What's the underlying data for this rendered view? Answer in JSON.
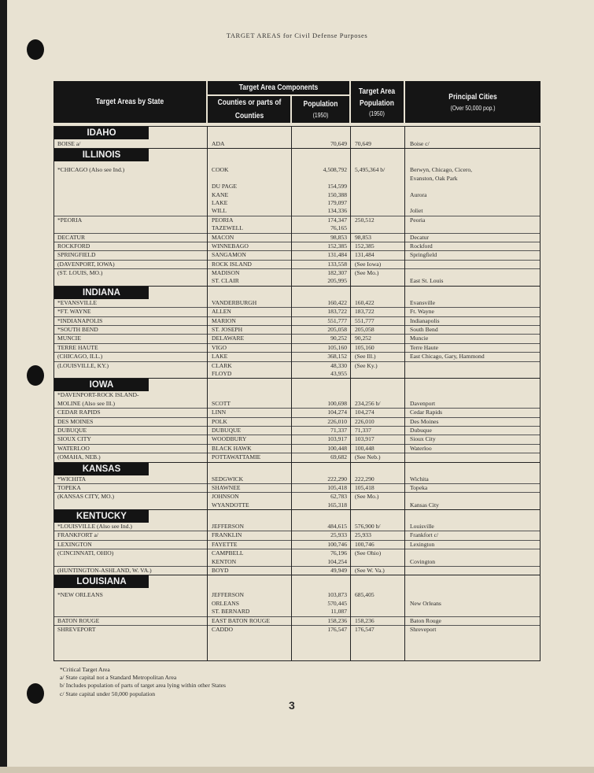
{
  "page_title": "TARGET AREAS for Civil Defense Purposes",
  "header": {
    "col_state": "Target Areas by State",
    "group": "Target Area Components",
    "col_counties": "Counties or parts of Counties",
    "col_population": "Population",
    "col_population_year": "(1950)",
    "col_ta_population": "Target Area Population",
    "col_ta_population_year": "(1950)",
    "col_cities": "Principal Cities",
    "col_cities_note": "(Over 50,000 pop.)"
  },
  "states": [
    {
      "name": "IDAHO",
      "entries": [
        {
          "lines": [
            [
              "BOISE a/",
              "ADA",
              "70,649",
              "70,649",
              "Boise c/"
            ]
          ]
        }
      ]
    },
    {
      "name": "ILLINOIS",
      "entries": [
        {
          "lines": [
            [
              "*CHICAGO (Also see Ind.)",
              "COOK",
              "4,508,792",
              "5,495,364 b/",
              "Berwyn, Chicago, Cicero,"
            ],
            [
              "",
              "",
              "",
              "",
              "Evanston, Oak Park"
            ],
            [
              "",
              "DU PAGE",
              "154,599",
              "",
              ""
            ],
            [
              "",
              "KANE",
              "150,388",
              "",
              "Aurora"
            ],
            [
              "",
              "LAKE",
              "179,097",
              "",
              ""
            ],
            [
              "",
              "WILL",
              "134,336",
              "",
              "Joliet"
            ]
          ]
        },
        {
          "lines": [
            [
              "*PEORIA",
              "PEORIA",
              "174,347",
              "250,512",
              "Peoria"
            ],
            [
              "",
              "TAZEWELL",
              "76,165",
              "",
              ""
            ]
          ]
        },
        {
          "lines": [
            [
              "DECATUR",
              "MACON",
              "98,853",
              "98,853",
              "Decatur"
            ]
          ]
        },
        {
          "lines": [
            [
              "ROCKFORD",
              "WINNEBAGO",
              "152,385",
              "152,385",
              "Rockford"
            ]
          ]
        },
        {
          "lines": [
            [
              "SPRINGFIELD",
              "SANGAMON",
              "131,484",
              "131,484",
              "Springfield"
            ]
          ]
        },
        {
          "lines": [
            [
              "(DAVENPORT, IOWA)",
              "ROCK ISLAND",
              "133,558",
              "(See Iowa)",
              ""
            ]
          ]
        },
        {
          "lines": [
            [
              "(ST. LOUIS, MO.)",
              "MADISON",
              "182,307",
              "(See Mo.)",
              ""
            ],
            [
              "",
              "ST. CLAIR",
              "205,995",
              "",
              "East St. Louis"
            ]
          ]
        }
      ]
    },
    {
      "name": "INDIANA",
      "entries": [
        {
          "lines": [
            [
              "*EVANSVILLE",
              "VANDERBURGH",
              "160,422",
              "160,422",
              "Evansville"
            ]
          ]
        },
        {
          "lines": [
            [
              "*FT. WAYNE",
              "ALLEN",
              "183,722",
              "183,722",
              "Ft. Wayne"
            ]
          ]
        },
        {
          "lines": [
            [
              "*INDIANAPOLIS",
              "MARION",
              "551,777",
              "551,777",
              "Indianapolis"
            ]
          ]
        },
        {
          "lines": [
            [
              "*SOUTH BEND",
              "ST. JOSEPH",
              "205,058",
              "205,058",
              "South Bend"
            ]
          ]
        },
        {
          "lines": [
            [
              "MUNCIE",
              "DELAWARE",
              "90,252",
              "90,252",
              "Muncie"
            ]
          ]
        },
        {
          "lines": [
            [
              "TERRE HAUTE",
              "VIGO",
              "105,160",
              "105,160",
              "Terre Haute"
            ]
          ]
        },
        {
          "lines": [
            [
              "(CHICAGO, ILL.)",
              "LAKE",
              "368,152",
              "(See Ill.)",
              "East Chicago, Gary, Hammond"
            ]
          ]
        },
        {
          "lines": [
            [
              "(LOUISVILLE, KY.)",
              "CLARK",
              "48,330",
              "(See Ky.)",
              ""
            ],
            [
              "",
              "FLOYD",
              "43,955",
              "",
              ""
            ]
          ]
        }
      ]
    },
    {
      "name": "IOWA",
      "entries": [
        {
          "lines": [
            [
              "*DAVENPORT-ROCK ISLAND-",
              "",
              "",
              "",
              ""
            ],
            [
              "  MOLINE (Also see Ill.)",
              "SCOTT",
              "100,698",
              "234,256 b/",
              "Davenport"
            ]
          ]
        },
        {
          "lines": [
            [
              "CEDAR RAPIDS",
              "LINN",
              "104,274",
              "104,274",
              "Cedar Rapids"
            ]
          ]
        },
        {
          "lines": [
            [
              "DES MOINES",
              "POLK",
              "226,010",
              "226,010",
              "Des Moines"
            ]
          ]
        },
        {
          "lines": [
            [
              "DUBUQUE",
              "DUBUQUE",
              "71,337",
              "71,337",
              "Dubuque"
            ]
          ]
        },
        {
          "lines": [
            [
              "SIOUX CITY",
              "WOODBURY",
              "103,917",
              "103,917",
              "Sioux City"
            ]
          ]
        },
        {
          "lines": [
            [
              "WATERLOO",
              "BLACK HAWK",
              "100,448",
              "100,448",
              "Waterloo"
            ]
          ]
        },
        {
          "lines": [
            [
              "(OMAHA, NEB.)",
              "POTTAWATTAMIE",
              "69,682",
              "(See Neb.)",
              ""
            ]
          ]
        }
      ]
    },
    {
      "name": "KANSAS",
      "entries": [
        {
          "lines": [
            [
              "*WICHITA",
              "SEDGWICK",
              "222,290",
              "222,290",
              "Wichita"
            ]
          ]
        },
        {
          "lines": [
            [
              "TOPEKA",
              "SHAWNEE",
              "105,418",
              "105,418",
              "Topeka"
            ]
          ]
        },
        {
          "lines": [
            [
              "(KANSAS CITY, MO.)",
              "JOHNSON",
              "62,783",
              "(See Mo.)",
              ""
            ],
            [
              "",
              "WYANDOTTE",
              "165,318",
              "",
              "Kansas City"
            ]
          ]
        }
      ]
    },
    {
      "name": "KENTUCKY",
      "entries": [
        {
          "lines": [
            [
              "*LOUISVILLE (Also see Ind.)",
              "JEFFERSON",
              "484,615",
              "576,900 b/",
              "Louisville"
            ]
          ]
        },
        {
          "lines": [
            [
              "FRANKFORT a/",
              "FRANKLIN",
              "25,933",
              "25,933",
              "Frankfort c/"
            ]
          ]
        },
        {
          "lines": [
            [
              "LEXINGTON",
              "FAYETTE",
              "100,746",
              "100,746",
              "Lexington"
            ]
          ]
        },
        {
          "lines": [
            [
              "(CINCINNATI, OHIO)",
              "CAMPBELL",
              "76,196",
              "(See Ohio)",
              ""
            ],
            [
              "",
              "KENTON",
              "104,254",
              "",
              "Covington"
            ]
          ]
        },
        {
          "lines": [
            [
              "(HUNTINGTON-ASHLAND, W. VA.)",
              "BOYD",
              "49,949",
              "(See W. Va.)",
              ""
            ]
          ]
        }
      ]
    },
    {
      "name": "LOUISIANA",
      "entries": [
        {
          "lines": [
            [
              "*NEW ORLEANS",
              "JEFFERSON",
              "103,873",
              "685,405",
              ""
            ],
            [
              "",
              "ORLEANS",
              "570,445",
              "",
              "New Orleans"
            ],
            [
              "",
              "ST. BERNARD",
              "11,087",
              "",
              ""
            ]
          ]
        },
        {
          "lines": [
            [
              "BATON ROUGE",
              "EAST BATON ROUGE",
              "158,236",
              "158,236",
              "Baton Rouge"
            ]
          ]
        },
        {
          "lines": [
            [
              "SHREVEPORT",
              "CADDO",
              "176,547",
              "176,547",
              "Shreveport"
            ]
          ]
        }
      ]
    }
  ],
  "footnotes": [
    "*Critical Target Area",
    "a/  State capital not a Standard Metropolitan Area",
    "b/  Includes population of parts of target area lying within other States",
    "c/  State capital under 50,000 population"
  ],
  "page_number": "3"
}
